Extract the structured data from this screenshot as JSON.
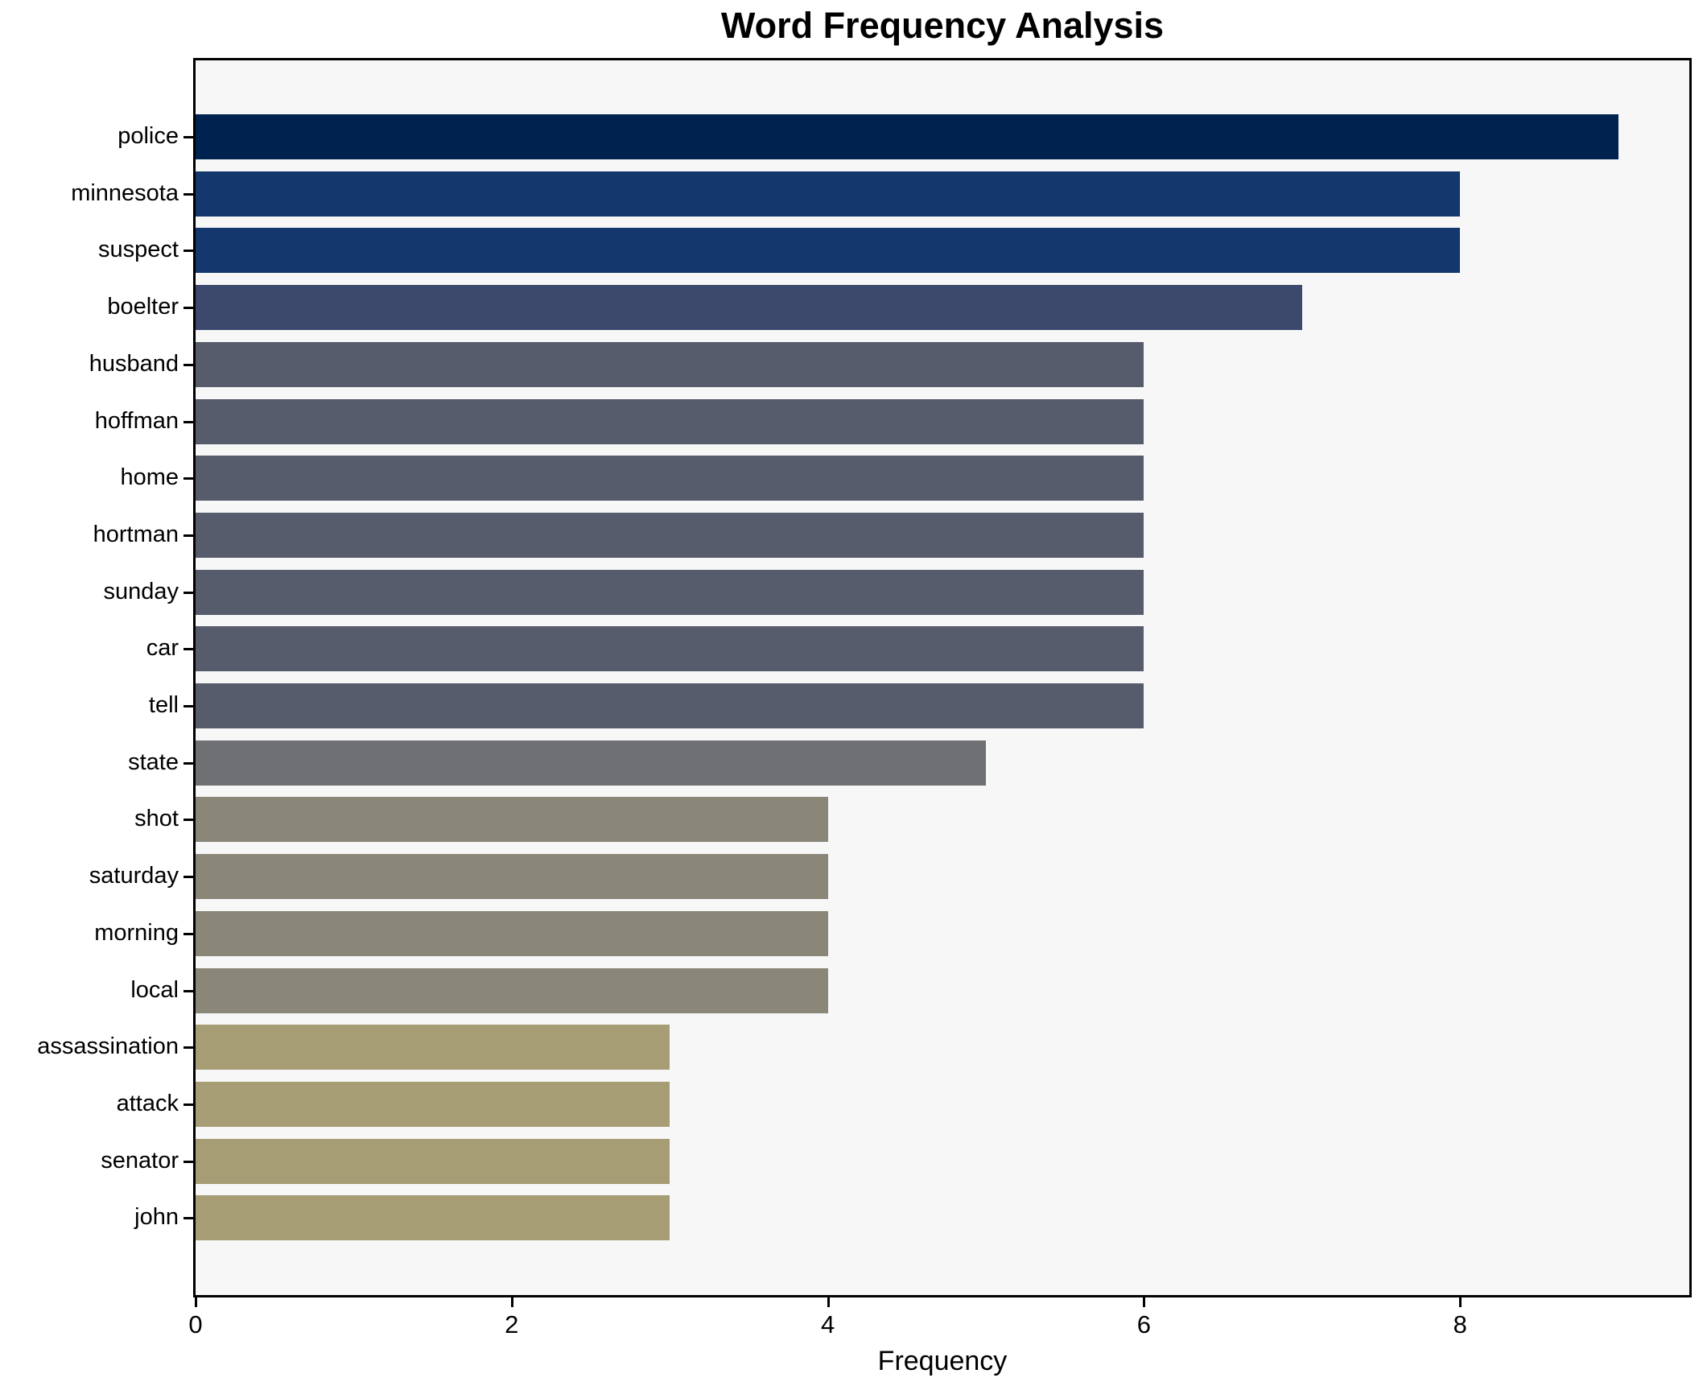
{
  "chart_data": {
    "type": "bar",
    "orientation": "horizontal",
    "title": "Word Frequency Analysis",
    "xlabel": "Frequency",
    "ylabel": "",
    "categories": [
      "police",
      "minnesota",
      "suspect",
      "boelter",
      "husband",
      "hoffman",
      "home",
      "hortman",
      "sunday",
      "car",
      "tell",
      "state",
      "shot",
      "saturday",
      "morning",
      "local",
      "assassination",
      "attack",
      "senator",
      "john"
    ],
    "values": [
      9,
      8,
      8,
      7,
      6,
      6,
      6,
      6,
      6,
      6,
      6,
      5,
      4,
      4,
      4,
      4,
      3,
      3,
      3,
      3
    ],
    "bar_colors": [
      "#00224e",
      "#14386e",
      "#14386e",
      "#3c496c",
      "#575c6c",
      "#575c6c",
      "#575c6c",
      "#575c6c",
      "#575c6c",
      "#575c6c",
      "#575c6c",
      "#6f7073",
      "#8a8779",
      "#8a8779",
      "#8a8779",
      "#8a8779",
      "#a69d74",
      "#a69d74",
      "#a69d74",
      "#a69d74"
    ],
    "xlim": [
      0,
      9.45
    ],
    "xticks": [
      0,
      2,
      4,
      6,
      8
    ],
    "grid": false,
    "legend": null,
    "plot_background": "#f7f7f8",
    "spine_color": "#000000",
    "text_color": "#000000"
  }
}
